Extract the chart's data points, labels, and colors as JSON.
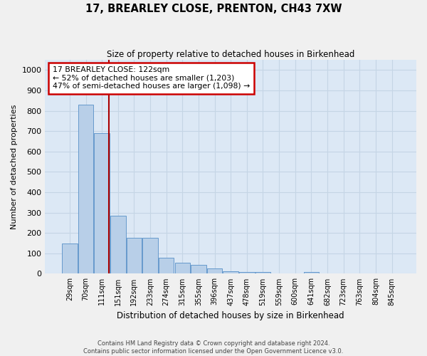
{
  "title": "17, BREARLEY CLOSE, PRENTON, CH43 7XW",
  "subtitle": "Size of property relative to detached houses in Birkenhead",
  "xlabel": "Distribution of detached houses by size in Birkenhead",
  "ylabel": "Number of detached properties",
  "footer_line1": "Contains HM Land Registry data © Crown copyright and database right 2024.",
  "footer_line2": "Contains public sector information licensed under the Open Government Licence v3.0.",
  "bin_labels": [
    "29sqm",
    "70sqm",
    "111sqm",
    "151sqm",
    "192sqm",
    "233sqm",
    "274sqm",
    "315sqm",
    "355sqm",
    "396sqm",
    "437sqm",
    "478sqm",
    "519sqm",
    "559sqm",
    "600sqm",
    "641sqm",
    "682sqm",
    "723sqm",
    "763sqm",
    "804sqm",
    "845sqm"
  ],
  "bar_values": [
    150,
    830,
    690,
    285,
    175,
    175,
    80,
    55,
    42,
    25,
    12,
    10,
    10,
    0,
    0,
    10,
    0,
    0,
    0,
    0,
    0
  ],
  "bar_color": "#b8cfe8",
  "bar_edge_color": "#6699cc",
  "grid_color": "#c5d5e5",
  "background_color": "#dce8f5",
  "fig_background_color": "#f0f0f0",
  "vline_color": "#aa0000",
  "vline_position": 2.45,
  "annotation_text": "17 BREARLEY CLOSE: 122sqm\n← 52% of detached houses are smaller (1,203)\n47% of semi-detached houses are larger (1,098) →",
  "annotation_box_color": "#ffffff",
  "annotation_box_edge_color": "#cc0000",
  "ylim": [
    0,
    1050
  ],
  "yticks": [
    0,
    100,
    200,
    300,
    400,
    500,
    600,
    700,
    800,
    900,
    1000
  ]
}
